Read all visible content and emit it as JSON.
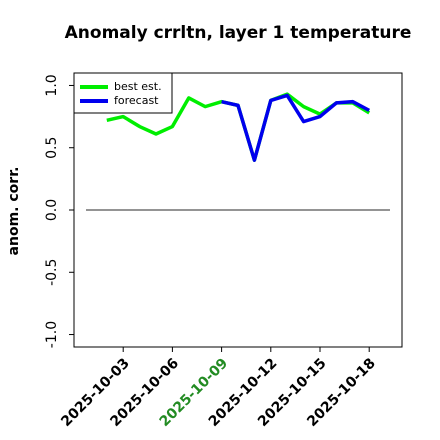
{
  "chart_data": {
    "type": "line",
    "title": "Anomaly crrltn, layer 1 temperature",
    "ylabel": "anom. corr.",
    "x": [
      "2025-10-02",
      "2025-10-03",
      "2025-10-04",
      "2025-10-05",
      "2025-10-06",
      "2025-10-07",
      "2025-10-08",
      "2025-10-09",
      "2025-10-10",
      "2025-10-11",
      "2025-10-12",
      "2025-10-13",
      "2025-10-14",
      "2025-10-15",
      "2025-10-16",
      "2025-10-17",
      "2025-10-18"
    ],
    "series": [
      {
        "name": "best est.",
        "color": "#00ee00",
        "values": [
          0.72,
          0.75,
          0.67,
          0.61,
          0.67,
          0.9,
          0.83,
          0.87,
          0.84,
          0.4,
          0.88,
          0.93,
          0.83,
          0.77,
          0.86,
          0.86,
          0.78
        ]
      },
      {
        "name": "forecast",
        "color": "#0000ee",
        "values": [
          null,
          null,
          null,
          null,
          null,
          null,
          null,
          0.87,
          0.84,
          0.4,
          0.88,
          0.92,
          0.71,
          0.75,
          0.86,
          0.87,
          0.8
        ]
      }
    ],
    "xlim": [
      "2025-09-30",
      "2025-10-20"
    ],
    "xticks": [
      "2025-10-03",
      "2025-10-06",
      "2025-10-09",
      "2025-10-12",
      "2025-10-15",
      "2025-10-18"
    ],
    "highlighted_xtick": "2025-10-09",
    "highlight_color": "#228b22",
    "ylim": [
      -1.1,
      1.1
    ],
    "yticks": [
      {
        "value": -1,
        "label": "-1.0"
      },
      -0.5,
      {
        "value": 0,
        "label": "0.0"
      },
      0.5,
      {
        "value": 1,
        "label": "1.0"
      }
    ],
    "legend": "upper left"
  }
}
